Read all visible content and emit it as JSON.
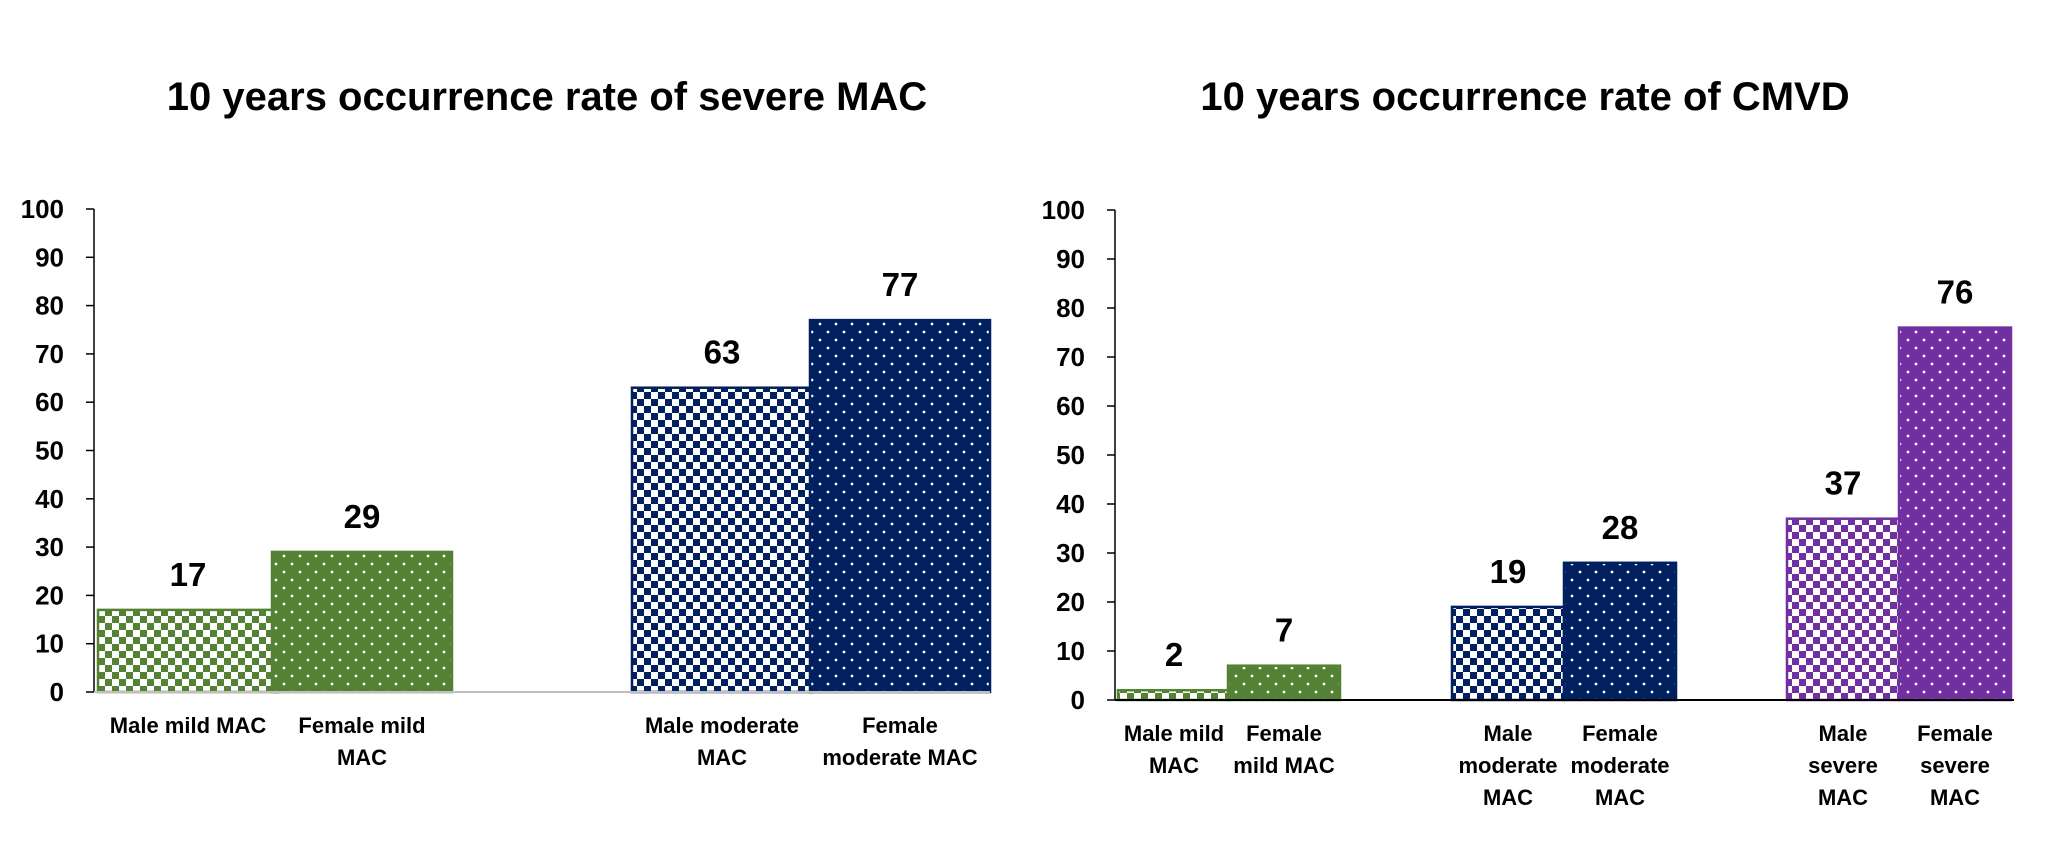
{
  "chart_data": [
    {
      "type": "bar",
      "title": "10 years occurrence rate of severe MAC",
      "xlabel": "",
      "ylabel": "",
      "ylim": [
        0,
        100
      ],
      "yticks": [
        "0",
        "10",
        "20",
        "30",
        "40",
        "50",
        "60",
        "70",
        "80",
        "90",
        "100"
      ],
      "grid": false,
      "categories": [
        "Male mild MAC",
        "Female mild MAC",
        "Male moderate MAC",
        "Female moderate MAC"
      ],
      "values": [
        17,
        29,
        63,
        77
      ],
      "colors": [
        "#548235",
        "#548235",
        "#002060",
        "#002060"
      ],
      "patterns": [
        "checker",
        "dots",
        "checker",
        "dots"
      ]
    },
    {
      "type": "bar",
      "title": "10 years occurrence rate of CMVD",
      "xlabel": "",
      "ylabel": "",
      "ylim": [
        0,
        100
      ],
      "yticks": [
        "0",
        "10",
        "20",
        "30",
        "40",
        "50",
        "60",
        "70",
        "80",
        "90",
        "100"
      ],
      "grid": false,
      "categories": [
        "Male mild MAC",
        "Female mild MAC",
        "Male moderate MAC",
        "Female moderate MAC",
        "Male severe MAC",
        "Female severe MAC"
      ],
      "values": [
        2,
        7,
        19,
        28,
        37,
        76
      ],
      "colors": [
        "#548235",
        "#548235",
        "#002060",
        "#002060",
        "#7030A0",
        "#7030A0"
      ],
      "patterns": [
        "checker",
        "dots",
        "checker",
        "dots",
        "checker",
        "dots"
      ]
    }
  ]
}
